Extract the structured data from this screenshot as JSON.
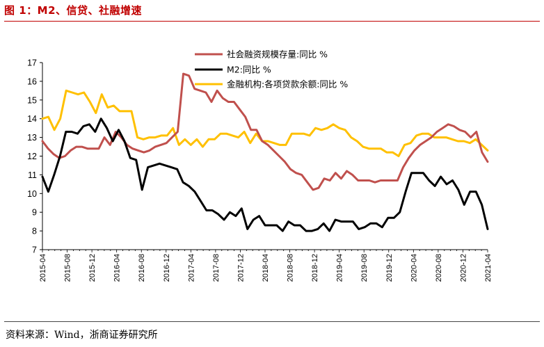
{
  "header": {
    "title": "图 1：M2、信贷、社融增速"
  },
  "footer": {
    "source": "资料来源：Wind，浙商证券研究所"
  },
  "chart_data": {
    "type": "line",
    "title": "",
    "xlabel": "",
    "ylabel": "",
    "ylim": [
      7,
      17
    ],
    "yticks": [
      7,
      8,
      9,
      10,
      11,
      12,
      13,
      14,
      15,
      16,
      17
    ],
    "grid": false,
    "legend_position": "top-right",
    "x_start": "2015-04",
    "x_tick_labels": [
      "2015-04",
      "2015-08",
      "2015-12",
      "2016-04",
      "2016-08",
      "2016-12",
      "2017-04",
      "2017-08",
      "2017-12",
      "2018-04",
      "2018-08",
      "2018-12",
      "2019-04",
      "2019-08",
      "2019-12",
      "2020-04",
      "2020-08",
      "2020-12",
      "2021-04"
    ],
    "series": [
      {
        "name": "社会融资规模存量:同比 %",
        "color": "#c0504d",
        "values": [
          12.8,
          12.4,
          12.1,
          11.9,
          12.0,
          12.3,
          12.5,
          12.5,
          12.4,
          12.4,
          12.4,
          13.0,
          12.6,
          13.3,
          13.0,
          12.6,
          12.4,
          12.3,
          12.2,
          12.3,
          12.5,
          12.6,
          12.7,
          13.0,
          13.3,
          16.4,
          16.3,
          15.6,
          15.5,
          15.4,
          14.9,
          15.5,
          15.1,
          14.9,
          14.9,
          14.5,
          14.1,
          13.4,
          13.4,
          12.8,
          12.6,
          12.3,
          12.0,
          11.7,
          11.3,
          11.1,
          11.0,
          10.6,
          10.2,
          10.3,
          10.8,
          10.7,
          11.1,
          10.8,
          11.2,
          11.0,
          10.7,
          10.7,
          10.7,
          10.6,
          10.7,
          10.7,
          10.7,
          10.7,
          11.4,
          11.9,
          12.3,
          12.6,
          12.8,
          13.0,
          13.3,
          13.5,
          13.7,
          13.6,
          13.4,
          13.3,
          13.0,
          13.3,
          12.2,
          11.7
        ]
      },
      {
        "name": "M2:同比 %",
        "color": "#000000",
        "values": [
          10.9,
          10.1,
          11.0,
          12.0,
          13.3,
          13.3,
          13.2,
          13.6,
          13.7,
          13.3,
          14.0,
          13.5,
          12.8,
          13.4,
          12.8,
          11.9,
          11.8,
          10.2,
          11.4,
          11.5,
          11.6,
          11.5,
          11.4,
          11.3,
          10.6,
          10.4,
          10.1,
          9.6,
          9.1,
          9.1,
          8.9,
          8.6,
          9.0,
          8.8,
          9.2,
          8.1,
          8.6,
          8.8,
          8.3,
          8.3,
          8.3,
          8.0,
          8.5,
          8.3,
          8.3,
          8.0,
          8.0,
          8.1,
          8.4,
          8.0,
          8.6,
          8.5,
          8.5,
          8.5,
          8.1,
          8.2,
          8.4,
          8.4,
          8.2,
          8.7,
          8.7,
          9.0,
          10.1,
          11.1,
          11.1,
          11.1,
          10.7,
          10.4,
          10.9,
          10.5,
          10.7,
          10.2,
          9.4,
          10.1,
          10.1,
          9.4,
          8.1
        ]
      },
      {
        "name": "金融机构:各项贷款余额:同比 %",
        "color": "#ffc000",
        "values": [
          14.0,
          14.1,
          13.4,
          14.0,
          15.5,
          15.4,
          15.3,
          15.4,
          14.9,
          14.3,
          15.3,
          14.6,
          14.7,
          14.4,
          14.4,
          14.4,
          13.0,
          12.9,
          13.0,
          13.0,
          13.1,
          13.1,
          13.5,
          12.6,
          12.9,
          12.6,
          12.9,
          12.5,
          12.9,
          12.9,
          13.2,
          13.2,
          13.1,
          13.0,
          13.3,
          12.7,
          13.2,
          12.8,
          12.8,
          12.7,
          12.6,
          12.6,
          13.2,
          13.2,
          13.2,
          13.1,
          13.5,
          13.4,
          13.5,
          13.7,
          13.5,
          13.4,
          13.0,
          12.8,
          12.5,
          12.4,
          12.4,
          12.4,
          12.2,
          12.2,
          12.0,
          12.6,
          12.7,
          13.1,
          13.2,
          13.2,
          13.0,
          13.0,
          13.0,
          12.9,
          12.8,
          12.8,
          12.7,
          12.9,
          12.6,
          12.3
        ]
      }
    ]
  }
}
